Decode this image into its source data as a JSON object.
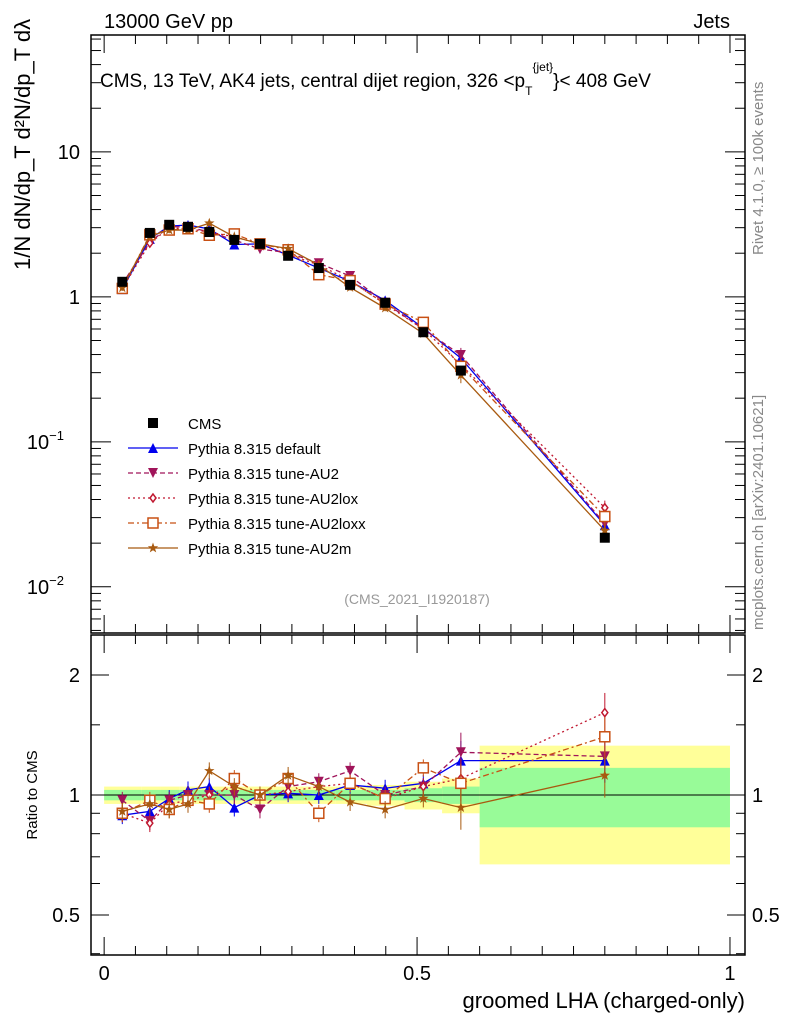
{
  "header": {
    "left": "13000 GeV pp",
    "right": "Jets"
  },
  "side_text": {
    "rivet": "Rivet 4.1.0, ≥ 100k events",
    "mcplots": "mcplots.cern.ch [arXiv:2401.10621]"
  },
  "analysis_id": "(CMS_2021_I1920187)",
  "chart_data": [
    {
      "type": "line",
      "panel": "main",
      "title": "CMS, 13 TeV, AK4 jets, central dijet region, 326 <p_T^{jet}< 408 GeV",
      "title_parts": {
        "a": "CMS, 13 TeV, AK4 jets, central dijet region, 326 <p",
        "sub": "T",
        "sup": "{jet}",
        "b": "}< 408 GeV"
      },
      "ylabel": "1/N dN/dp_T d²N/dp_T dλ",
      "yscale": "log",
      "xlim": [
        -0.021,
        1.024
      ],
      "ylim": [
        0.0048,
        64
      ],
      "yticks": [
        {
          "v": 0.01,
          "label": "10",
          "exp": "−2"
        },
        {
          "v": 0.1,
          "label": "10",
          "exp": "−1"
        },
        {
          "v": 1,
          "label": "1",
          "exp": ""
        },
        {
          "v": 10,
          "label": "10",
          "exp": ""
        }
      ],
      "x": [
        0.029,
        0.073,
        0.104,
        0.134,
        0.168,
        0.208,
        0.249,
        0.294,
        0.343,
        0.393,
        0.449,
        0.51,
        0.57,
        0.8
      ],
      "bin_edges": [
        0,
        0.06,
        0.09,
        0.12,
        0.15,
        0.19,
        0.23,
        0.27,
        0.32,
        0.37,
        0.42,
        0.48,
        0.54,
        0.6,
        1.0
      ],
      "data": {
        "name": "CMS",
        "values": [
          1.27,
          2.76,
          3.14,
          3.04,
          2.8,
          2.47,
          2.32,
          1.92,
          1.58,
          1.21,
          0.91,
          0.57,
          0.31,
          0.0218
        ]
      },
      "legend_position": "bottom-left",
      "series": [
        {
          "name": "Pythia 8.315 default",
          "color": "#0000ee",
          "marker": "triangle-up",
          "dash": "",
          "ratio": [
            0.89,
            0.91,
            0.98,
            1.03,
            1.05,
            0.93,
            1.0,
            1.01,
            1.0,
            1.06,
            1.04,
            1.07,
            1.22,
            1.22
          ]
        },
        {
          "name": "Pythia 8.315 tune-AU2",
          "color": "#a0145a",
          "marker": "triangle-down",
          "dash": "5,3",
          "ratio": [
            0.97,
            0.86,
            0.97,
            1.0,
            1.0,
            1.0,
            0.92,
            1.05,
            1.08,
            1.15,
            1.0,
            1.05,
            1.28,
            1.25
          ]
        },
        {
          "name": "Pythia 8.315 tune-AU2lox",
          "color": "#c01830",
          "marker": "diamond",
          "dash": "2,3",
          "ratio": [
            0.9,
            0.85,
            0.95,
            0.97,
            1.0,
            1.05,
            1.0,
            1.02,
            1.05,
            1.07,
            0.98,
            1.05,
            1.1,
            1.61
          ]
        },
        {
          "name": "Pythia 8.315 tune-AU2loxx",
          "color": "#c85014",
          "marker": "square-open",
          "dash": "6,3,2,3",
          "ratio": [
            0.9,
            0.97,
            0.92,
            0.97,
            0.95,
            1.1,
            1.0,
            1.1,
            0.9,
            1.07,
            0.98,
            1.17,
            1.07,
            1.4
          ]
        },
        {
          "name": "Pythia 8.315 tune-AU2m",
          "color": "#a85a10",
          "marker": "star",
          "dash": "",
          "ratio": [
            0.91,
            0.95,
            0.92,
            0.95,
            1.15,
            1.05,
            1.0,
            1.12,
            1.05,
            0.96,
            0.92,
            0.98,
            0.93,
            1.12
          ]
        }
      ]
    },
    {
      "type": "line",
      "panel": "ratio",
      "ylabel": "Ratio to CMS",
      "xlabel": "groomed LHA (charged-only)",
      "yscale": "log2",
      "ylim": [
        0.397,
        2.52
      ],
      "yticks": [
        {
          "v": 0.5,
          "label": "0.5"
        },
        {
          "v": 1,
          "label": "1"
        },
        {
          "v": 2,
          "label": "2"
        }
      ],
      "xticks": [
        {
          "v": 0,
          "label": "0"
        },
        {
          "v": 0.5,
          "label": "0.5"
        },
        {
          "v": 1,
          "label": "1"
        }
      ],
      "band_1sigma": [
        0.03,
        0.03,
        0.03,
        0.03,
        0.03,
        0.03,
        0.03,
        0.03,
        0.03,
        0.03,
        0.03,
        0.04,
        0.05,
        0.17
      ],
      "band_2sigma": [
        0.05,
        0.05,
        0.05,
        0.05,
        0.05,
        0.05,
        0.05,
        0.05,
        0.05,
        0.05,
        0.06,
        0.08,
        0.1,
        0.33
      ],
      "band_colors": {
        "inner": "#98fb98",
        "outer": "#ffff99"
      }
    }
  ]
}
